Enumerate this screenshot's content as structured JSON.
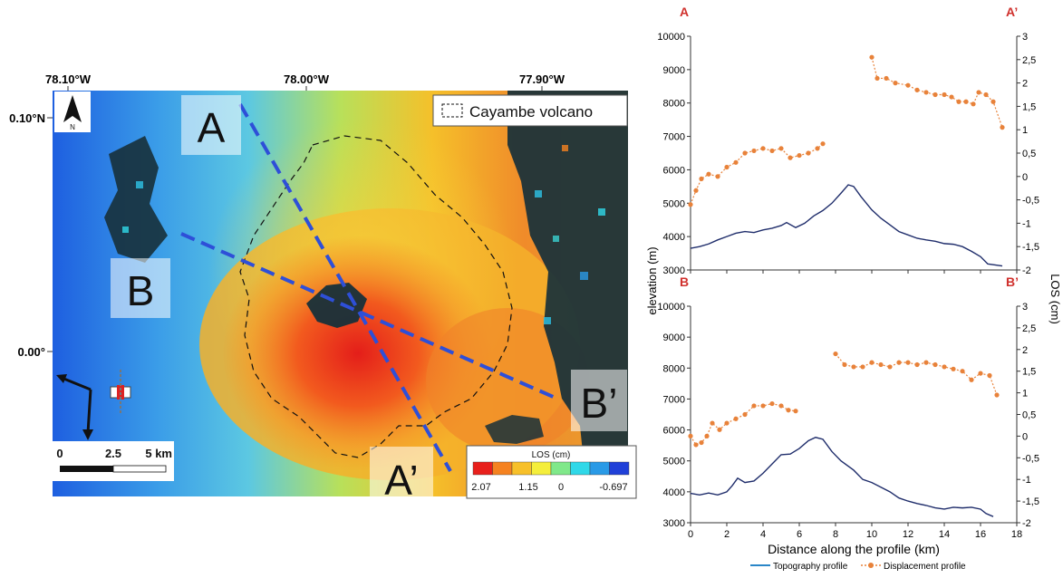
{
  "map": {
    "lon_labels": [
      "78.10°W",
      "78.00°W",
      "77.90°W"
    ],
    "lat_labels": [
      "0.10°N",
      "0.00°"
    ],
    "north_label": "N",
    "legend_label": "Cayambe volcano",
    "profile_labels": {
      "A": "A",
      "A_end": "A’",
      "B": "B",
      "B_end": "B’"
    },
    "scale_bar": {
      "zero": "0",
      "mid": "2.5",
      "end": "5 km"
    },
    "colorbar": {
      "title": "LOS (cm)",
      "ticks": [
        "2.07",
        "1.15",
        "0",
        "-0.697"
      ],
      "colors": [
        "#e8201c",
        "#f58220",
        "#f7c02a",
        "#f4ee3c",
        "#80e88a",
        "#30d8e8",
        "#2a9ae6",
        "#2040d8"
      ]
    },
    "colors": {
      "profile_line": "#2e4fd8",
      "volcano_outline": "#111111"
    }
  },
  "chart_data": [
    {
      "type": "line",
      "panel": "A-A'",
      "start_label": "A",
      "end_label": "A’",
      "xlim": [
        0,
        18
      ],
      "ylim": [
        3000,
        10000
      ],
      "y2lim": [
        -2,
        3
      ],
      "yticks": [
        "3000",
        "4000",
        "5000",
        "6000",
        "7000",
        "8000",
        "9000",
        "10000"
      ],
      "y2ticks": [
        "-2",
        "-1,5",
        "-1",
        "-0,5",
        "0",
        "0,5",
        "1",
        "1,5",
        "2",
        "2,5",
        "3"
      ],
      "series": [
        {
          "name": "Topography profile",
          "axis": "left",
          "color": "#1f2d6b",
          "x": [
            0,
            0.5,
            1,
            1.5,
            2,
            2.5,
            3,
            3.5,
            4,
            4.5,
            5,
            5.3,
            5.8,
            6.3,
            6.8,
            7.3,
            7.8,
            8.3,
            8.7,
            9.0,
            9.4,
            10,
            10.5,
            11,
            11.5,
            12,
            12.5,
            13,
            13.5,
            14,
            14.5,
            15,
            15.5,
            16,
            16.4,
            17.2
          ],
          "values": [
            3650,
            3700,
            3780,
            3900,
            4000,
            4100,
            4150,
            4120,
            4200,
            4250,
            4330,
            4420,
            4270,
            4400,
            4620,
            4780,
            5000,
            5300,
            5550,
            5500,
            5200,
            4800,
            4550,
            4350,
            4150,
            4050,
            3950,
            3900,
            3860,
            3790,
            3770,
            3700,
            3560,
            3400,
            3180,
            3120
          ]
        },
        {
          "name": "Displacement profile",
          "axis": "right",
          "color": "#e8823a",
          "x": [
            0,
            0.3,
            0.6,
            1,
            1.5,
            2,
            2.5,
            3,
            3.5,
            4,
            4.5,
            5,
            5.5,
            6,
            6.5,
            7,
            7.3,
            10,
            10.3,
            10.8,
            11.3,
            12,
            12.5,
            13,
            13.5,
            14,
            14.4,
            14.8,
            15.2,
            15.6,
            15.9,
            16.3,
            16.7,
            17.2
          ],
          "values": [
            -0.6,
            -0.3,
            -0.05,
            0.05,
            0.0,
            0.2,
            0.3,
            0.5,
            0.55,
            0.6,
            0.55,
            0.6,
            0.4,
            0.45,
            0.5,
            0.6,
            0.7,
            2.55,
            2.1,
            2.1,
            2.0,
            1.95,
            1.85,
            1.8,
            1.75,
            1.75,
            1.7,
            1.6,
            1.6,
            1.55,
            1.8,
            1.75,
            1.6,
            1.05
          ]
        }
      ]
    },
    {
      "type": "line",
      "panel": "B-B'",
      "start_label": "B",
      "end_label": "B’",
      "xlim": [
        0,
        18
      ],
      "ylim": [
        3000,
        10000
      ],
      "y2lim": [
        -2,
        3
      ],
      "xticks": [
        "0",
        "2",
        "4",
        "6",
        "8",
        "10",
        "12",
        "14",
        "16",
        "18"
      ],
      "yticks": [
        "3000",
        "4000",
        "5000",
        "6000",
        "7000",
        "8000",
        "9000",
        "10000"
      ],
      "y2ticks": [
        "-2",
        "-1,5",
        "-1",
        "-0,5",
        "0",
        "0,5",
        "1",
        "1,5",
        "2",
        "2,5",
        "3"
      ],
      "series": [
        {
          "name": "Topography profile",
          "axis": "left",
          "color": "#1f2d6b",
          "x": [
            0,
            0.5,
            1,
            1.5,
            2,
            2.3,
            2.6,
            3,
            3.5,
            4,
            4.5,
            5,
            5.5,
            6,
            6.5,
            6.9,
            7.3,
            7.8,
            8.3,
            9,
            9.5,
            10,
            10.5,
            11,
            11.5,
            12,
            12.5,
            13,
            13.5,
            14,
            14.5,
            15,
            15.5,
            16,
            16.3,
            16.7
          ],
          "values": [
            3950,
            3900,
            3960,
            3900,
            4000,
            4200,
            4440,
            4300,
            4350,
            4600,
            4900,
            5200,
            5220,
            5400,
            5650,
            5760,
            5700,
            5300,
            5000,
            4700,
            4400,
            4300,
            4150,
            4000,
            3800,
            3700,
            3620,
            3560,
            3480,
            3440,
            3500,
            3480,
            3500,
            3440,
            3300,
            3200
          ]
        },
        {
          "name": "Displacement profile",
          "axis": "right",
          "color": "#e8823a",
          "x": [
            0,
            0.3,
            0.6,
            0.9,
            1.2,
            1.6,
            2,
            2.5,
            3,
            3.5,
            4,
            4.5,
            5,
            5.4,
            5.8,
            8,
            8.5,
            9,
            9.5,
            10,
            10.5,
            11,
            11.5,
            12,
            12.5,
            13,
            13.5,
            14,
            14.5,
            15,
            15.5,
            16,
            16.5,
            16.9
          ],
          "values": [
            0.0,
            -0.2,
            -0.15,
            0.0,
            0.3,
            0.15,
            0.3,
            0.4,
            0.5,
            0.7,
            0.7,
            0.75,
            0.7,
            0.6,
            0.58,
            1.9,
            1.65,
            1.6,
            1.6,
            1.7,
            1.65,
            1.6,
            1.7,
            1.7,
            1.65,
            1.7,
            1.65,
            1.6,
            1.55,
            1.5,
            1.3,
            1.45,
            1.4,
            0.95
          ]
        }
      ]
    }
  ],
  "axes": {
    "ylabel_left": "elevation (m)",
    "ylabel_right": "LOS (cm)",
    "xlabel": "Distance along the profile (km)"
  },
  "legend": {
    "topography": "Topography profile",
    "displacement": "Displacement profile"
  }
}
